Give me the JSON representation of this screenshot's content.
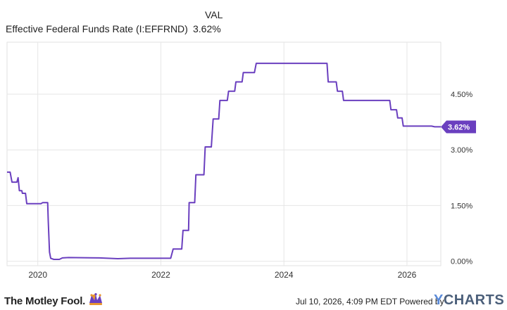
{
  "legend": {
    "header": "VAL",
    "series_name": "Effective Federal Funds Rate (I:EFFRND)",
    "series_value": "3.62%"
  },
  "footer": {
    "brand": "The Motley Fool.",
    "timestamp": "Jul 10, 2026, 4:09 PM EDT Powered by",
    "ycharts_y": "Y",
    "ycharts_rest": "CHARTS"
  },
  "colors": {
    "line": "#6a3fbf",
    "callout": "#6a3fbf",
    "grid": "#e6e6e6",
    "brand_orange": "#e8962e",
    "brand_purple": "#6a3fbf"
  },
  "chart_data": {
    "type": "line",
    "title": "",
    "xlabel": "",
    "ylabel": "",
    "x_ticks": [
      "2020",
      "2022",
      "2024",
      "2026"
    ],
    "y_ticks": [
      "0.00%",
      "1.50%",
      "3.00%",
      "4.50%"
    ],
    "y_tick_values": [
      0,
      1.5,
      3,
      4.5
    ],
    "xlim": [
      2019.5,
      2026.55
    ],
    "ylim": [
      -0.12,
      5.9
    ],
    "last_value": 3.62,
    "last_label": "3.62%",
    "grid": true,
    "series": [
      {
        "name": "Effective Federal Funds Rate (I:EFFRND)",
        "points": [
          [
            2019.5,
            2.4
          ],
          [
            2019.55,
            2.4
          ],
          [
            2019.58,
            2.13
          ],
          [
            2019.66,
            2.13
          ],
          [
            2019.68,
            2.25
          ],
          [
            2019.7,
            1.9
          ],
          [
            2019.74,
            1.9
          ],
          [
            2019.75,
            1.83
          ],
          [
            2019.8,
            1.83
          ],
          [
            2019.82,
            1.55
          ],
          [
            2020.0,
            1.55
          ],
          [
            2020.05,
            1.55
          ],
          [
            2020.08,
            1.58
          ],
          [
            2020.16,
            1.58
          ],
          [
            2020.17,
            1.1
          ],
          [
            2020.19,
            0.25
          ],
          [
            2020.21,
            0.08
          ],
          [
            2020.26,
            0.05
          ],
          [
            2020.35,
            0.05
          ],
          [
            2020.4,
            0.09
          ],
          [
            2020.5,
            0.1
          ],
          [
            2021.0,
            0.09
          ],
          [
            2021.3,
            0.07
          ],
          [
            2021.5,
            0.08
          ],
          [
            2021.8,
            0.08
          ],
          [
            2022.16,
            0.08
          ],
          [
            2022.2,
            0.33
          ],
          [
            2022.34,
            0.33
          ],
          [
            2022.36,
            0.83
          ],
          [
            2022.45,
            0.83
          ],
          [
            2022.46,
            1.58
          ],
          [
            2022.55,
            1.58
          ],
          [
            2022.57,
            2.33
          ],
          [
            2022.7,
            2.33
          ],
          [
            2022.72,
            3.08
          ],
          [
            2022.82,
            3.08
          ],
          [
            2022.85,
            3.83
          ],
          [
            2022.94,
            3.83
          ],
          [
            2022.96,
            4.33
          ],
          [
            2023.08,
            4.33
          ],
          [
            2023.1,
            4.58
          ],
          [
            2023.2,
            4.58
          ],
          [
            2023.22,
            4.83
          ],
          [
            2023.32,
            4.83
          ],
          [
            2023.34,
            5.08
          ],
          [
            2023.52,
            5.08
          ],
          [
            2023.55,
            5.33
          ],
          [
            2024.7,
            5.33
          ],
          [
            2024.72,
            4.83
          ],
          [
            2024.85,
            4.83
          ],
          [
            2024.87,
            4.58
          ],
          [
            2024.95,
            4.58
          ],
          [
            2024.97,
            4.33
          ],
          [
            2025.72,
            4.33
          ],
          [
            2025.74,
            4.08
          ],
          [
            2025.83,
            4.08
          ],
          [
            2025.85,
            3.86
          ],
          [
            2025.92,
            3.86
          ],
          [
            2025.94,
            3.64
          ],
          [
            2026.4,
            3.64
          ],
          [
            2026.45,
            3.62
          ],
          [
            2026.55,
            3.62
          ]
        ]
      }
    ]
  }
}
